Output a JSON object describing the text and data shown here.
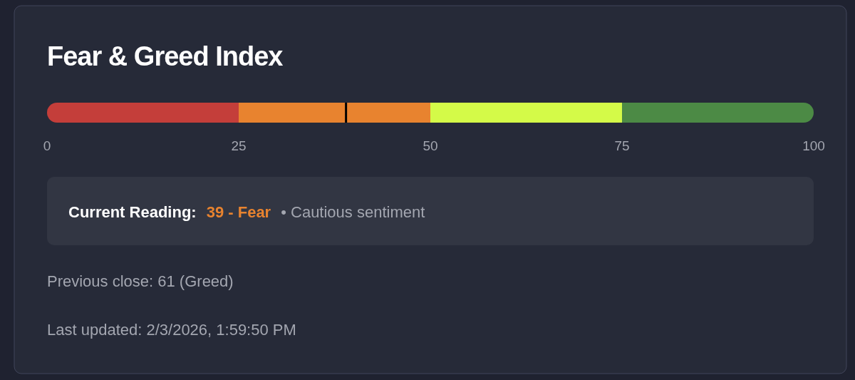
{
  "chart_data": {
    "type": "bar",
    "title": "Fear & Greed Index",
    "orientation": "horizontal",
    "stacked": true,
    "categories": [
      null
    ],
    "series": [
      {
        "color": "#c43e3a",
        "values": [
          25
        ]
      },
      {
        "color": "#e8832f",
        "values": [
          25
        ]
      },
      {
        "color": "#d4fa48",
        "values": [
          25
        ]
      },
      {
        "color": "#4c8a45",
        "values": [
          25
        ]
      }
    ],
    "xlim": [
      0,
      100
    ],
    "xticks": [
      0,
      25,
      50,
      75,
      100
    ],
    "tick_labels": "x",
    "ref_lines": [
      {
        "axis": "x",
        "value": 39,
        "color": "#000000"
      }
    ],
    "annotations": [
      "Current Reading:",
      "39 - Fear",
      "• Cautious sentiment",
      "Previous close: 61 (Greed)",
      "Last updated: 2/3/2026, 1:59:50 PM"
    ]
  }
}
